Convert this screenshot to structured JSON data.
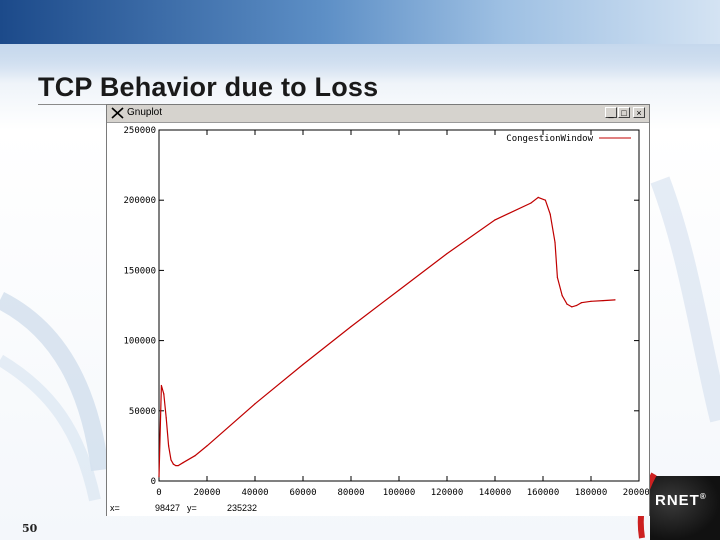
{
  "slide": {
    "title": "TCP Behavior due to Loss",
    "page_number": "50"
  },
  "window": {
    "title": "Gnuplot",
    "buttons": {
      "minimize": "_",
      "maximize": "□",
      "close": "×"
    }
  },
  "status_bar": {
    "x_label": "x=",
    "x_value": "98427",
    "y_label": "y=",
    "y_value": "235232"
  },
  "logo": {
    "text": "RNET"
  },
  "colors": {
    "curve": "#c00000",
    "title_band": "#1f4f8f",
    "logo_bg": "#111111"
  },
  "chart_data": {
    "type": "line",
    "legend": "CongestionWindow",
    "legend_placement": "top-right",
    "grid": false,
    "xlim": [
      0,
      200000
    ],
    "ylim": [
      0,
      250000
    ],
    "x_ticks": [
      "0",
      "20000",
      "40000",
      "60000",
      "80000",
      "100000",
      "120000",
      "140000",
      "160000",
      "180000",
      "200000"
    ],
    "y_ticks": [
      "0",
      "50000",
      "100000",
      "150000",
      "200000",
      "250000"
    ],
    "series": [
      {
        "name": "CongestionWindow",
        "x": [
          0,
          1000,
          2000,
          3000,
          4000,
          5000,
          6000,
          7000,
          8000,
          10000,
          15000,
          20000,
          40000,
          60000,
          80000,
          100000,
          120000,
          140000,
          155000,
          158000,
          161000,
          163000,
          165000,
          166000,
          168000,
          170000,
          172000,
          174000,
          176000,
          180000,
          185000,
          190000
        ],
        "y": [
          3000,
          68000,
          62000,
          45000,
          25000,
          15000,
          12000,
          11000,
          11000,
          13000,
          18000,
          25000,
          55000,
          83000,
          110000,
          136000,
          162000,
          186000,
          198000,
          202000,
          200000,
          190000,
          170000,
          145000,
          132000,
          126000,
          124000,
          125000,
          127000,
          128000,
          128500,
          129000
        ]
      }
    ]
  }
}
